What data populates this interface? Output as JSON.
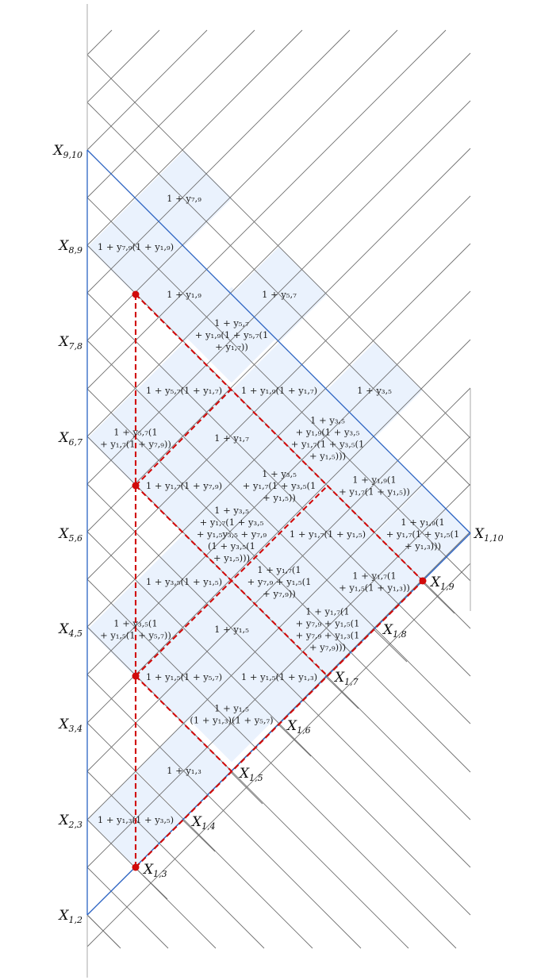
{
  "axis_labels": {
    "left": [
      {
        "main": "X",
        "sub": "1,2"
      },
      {
        "main": "X",
        "sub": "2,3"
      },
      {
        "main": "X",
        "sub": "3,4"
      },
      {
        "main": "X",
        "sub": "4,5"
      },
      {
        "main": "X",
        "sub": "5,6"
      },
      {
        "main": "X",
        "sub": "6,7"
      },
      {
        "main": "X",
        "sub": "7,8"
      },
      {
        "main": "X",
        "sub": "8,9"
      },
      {
        "main": "X",
        "sub": "9,10"
      }
    ],
    "right": [
      {
        "main": "X",
        "sub": "1,3"
      },
      {
        "main": "X",
        "sub": "1,4"
      },
      {
        "main": "X",
        "sub": "1,5"
      },
      {
        "main": "X",
        "sub": "1,6"
      },
      {
        "main": "X",
        "sub": "1,7"
      },
      {
        "main": "X",
        "sub": "1,8"
      },
      {
        "main": "X",
        "sub": "1,9"
      },
      {
        "main": "X",
        "sub": "1,10"
      }
    ]
  },
  "cells": [
    {
      "lines": [
        "1 + y₁,₃(1 + y₃,₅)"
      ]
    },
    {
      "lines": [
        "1 + y₁,₃"
      ]
    },
    {
      "lines": [
        "1 + y₁,₅",
        "(1 + y₁,₃)(1 + y₅,₇)"
      ]
    },
    {
      "lines": [
        "1 + y₁,₅(1 + y₅,₇)"
      ]
    },
    {
      "lines": [
        "1 + y₁,₅(1 + y₁,₃)"
      ]
    },
    {
      "lines": [
        "1 + y₃,₅(1",
        "+ y₁,₅(1 + y₅,₇))"
      ]
    },
    {
      "lines": [
        "1 + y₁,₅"
      ]
    },
    {
      "lines": [
        "1 + y₁,₇(1",
        "+ y₇,₉ + y₁,₅(1",
        "+ y₇,₉ + y₁,₃(1",
        "+ y₇,₉)))"
      ]
    },
    {
      "lines": [
        "1 + y₃,₅(1 + y₁,₅)"
      ]
    },
    {
      "lines": [
        "1 + y₁,₇(1",
        "+ y₇,₉ + y₁,₅(1",
        "+ y₇,₉))"
      ]
    },
    {
      "lines": [
        "1 + y₁,₇(1",
        "+ y₁,₅(1 + y₁,₃))"
      ]
    },
    {
      "lines": [
        "1 + y₃,₅",
        "+ y₁,₇(1 + y₃,₅",
        "+ y₁,₅y₃,₅ + y₇,₉",
        "(1 + y₃,₅(1",
        "+ y₁,₅)))"
      ]
    },
    {
      "lines": [
        "1 + y₁,₇(1 + y₁,₅)"
      ]
    },
    {
      "lines": [
        "1 + y₁,₉(1",
        "+ y₁,₇(1 + y₁,₅(1",
        "+ y₁,₃)))"
      ]
    },
    {
      "lines": [
        "1 + y₅,₇(1",
        "+ y₁,₇(1 + y₇,₉))"
      ]
    },
    {
      "lines": [
        "1 + y₁,₇(1 + y₇,₉)"
      ]
    },
    {
      "lines": [
        "1 + y₃,₅",
        "+ y₁,₇(1 + y₃,₅(1",
        "+ y₁,₅))"
      ]
    },
    {
      "lines": [
        "1 + y₁,₉(1",
        "+ y₁,₇(1 + y₁,₅))"
      ]
    },
    {
      "lines": [
        "1 + y₁,₇"
      ]
    },
    {
      "lines": [
        "1 + y₃,₅",
        "+ y₁,₉(1 + y₃,₅",
        "+ y₁,₇(1 + y₃,₅(1",
        "+ y₁,₅)))"
      ]
    },
    {
      "lines": [
        "1 + y₅,₇(1 + y₁,₇)"
      ]
    },
    {
      "lines": [
        "1 + y₁,₉(1 + y₁,₇)"
      ]
    },
    {
      "lines": [
        "1 + y₃,₅"
      ]
    },
    {
      "lines": [
        "1 + y₅,₇",
        "+ y₁,₉(1 + y₅,₇(1",
        "+ y₁,₇))"
      ]
    },
    {
      "lines": [
        "1 + y₁,₉"
      ]
    },
    {
      "lines": [
        "1 + y₅,₇"
      ]
    },
    {
      "lines": [
        "1 + y₇,₉(1 + y₁,₉)"
      ]
    },
    {
      "lines": [
        "1 + y₇,₉"
      ]
    }
  ]
}
